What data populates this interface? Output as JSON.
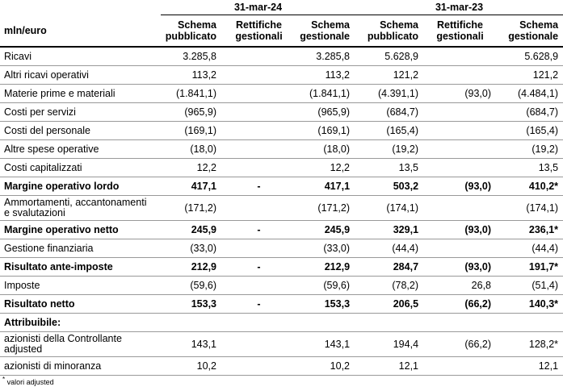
{
  "periods": [
    "31-mar-24",
    "31-mar-23"
  ],
  "header": {
    "unit_label": "mln/euro",
    "columns": [
      [
        "Schema",
        "pubblicato"
      ],
      [
        "Rettifiche",
        "gestionali"
      ],
      [
        "Schema",
        "gestionale"
      ],
      [
        "Schema",
        "pubblicato"
      ],
      [
        "Rettifiche",
        "gestionali"
      ],
      [
        "Schema",
        "gestionale"
      ]
    ]
  },
  "rows": [
    {
      "label": "Ricavi",
      "values": [
        "3.285,8",
        "",
        "3.285,8",
        "5.628,9",
        "",
        "5.628,9"
      ]
    },
    {
      "label": "Altri ricavi operativi",
      "values": [
        "113,2",
        "",
        "113,2",
        "121,2",
        "",
        "121,2"
      ]
    },
    {
      "label": "Materie prime e materiali",
      "values": [
        "(1.841,1)",
        "",
        "(1.841,1)",
        "(4.391,1)",
        "(93,0)",
        "(4.484,1)"
      ]
    },
    {
      "label": "Costi per servizi",
      "values": [
        "(965,9)",
        "",
        "(965,9)",
        "(684,7)",
        "",
        "(684,7)"
      ]
    },
    {
      "label": "Costi del personale",
      "values": [
        "(169,1)",
        "",
        "(169,1)",
        "(165,4)",
        "",
        "(165,4)"
      ]
    },
    {
      "label": "Altre spese operative",
      "values": [
        "(18,0)",
        "",
        "(18,0)",
        "(19,2)",
        "",
        "(19,2)"
      ]
    },
    {
      "label": "Costi capitalizzati",
      "values": [
        "12,2",
        "",
        "12,2",
        "13,5",
        "",
        "13,5"
      ]
    },
    {
      "label": "Margine operativo lordo",
      "values": [
        "417,1",
        "-",
        "417,1",
        "503,2",
        "(93,0)",
        "410,2*"
      ]
    },
    {
      "label": "Ammortamenti, accantonamenti e svalutazioni",
      "label_lines": [
        "Ammortamenti, accantonamenti",
        "e svalutazioni"
      ],
      "values": [
        "(171,2)",
        "",
        "(171,2)",
        "(174,1)",
        "",
        "(174,1)"
      ]
    },
    {
      "label": "Margine operativo netto",
      "values": [
        "245,9",
        "-",
        "245,9",
        "329,1",
        "(93,0)",
        "236,1*"
      ]
    },
    {
      "label": "Gestione finanziaria",
      "values": [
        "(33,0)",
        "",
        "(33,0)",
        "(44,4)",
        "",
        "(44,4)"
      ]
    },
    {
      "label": "Risultato ante-imposte",
      "values": [
        "212,9",
        "-",
        "212,9",
        "284,7",
        "(93,0)",
        "191,7*"
      ]
    },
    {
      "label": "Imposte",
      "values": [
        "(59,6)",
        "",
        "(59,6)",
        "(78,2)",
        "26,8",
        "(51,4)"
      ]
    },
    {
      "label": "Risultato netto",
      "values": [
        "153,3",
        "-",
        "153,3",
        "206,5",
        "(66,2)",
        "140,3*"
      ]
    },
    {
      "label": "Attribuibile:",
      "values": [
        "",
        "",
        "",
        "",
        "",
        ""
      ]
    },
    {
      "label": "azionisti della Controllante adjusted",
      "label_lines": [
        "azionisti della Controllante",
        "adjusted"
      ],
      "values": [
        "143,1",
        "",
        "143,1",
        "194,4",
        "(66,2)",
        "128,2*"
      ]
    },
    {
      "label": "azionisti di minoranza",
      "values": [
        "10,2",
        "",
        "10,2",
        "12,1",
        "",
        "12,1"
      ]
    }
  ],
  "footnote": {
    "marker": "*",
    "text": "valori adjusted"
  }
}
